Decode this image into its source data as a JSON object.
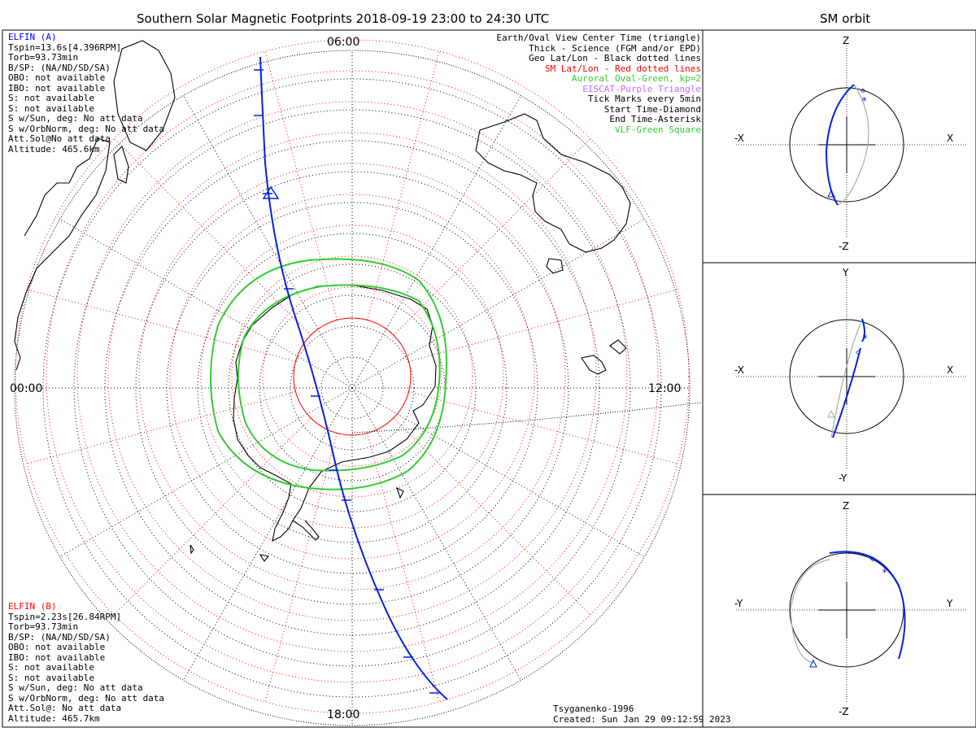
{
  "main_title": "Southern Solar Magnetic Footprints 2018-09-19 23:00 to 24:30 UTC",
  "orbit_title": "SM orbit",
  "mlt_labels": {
    "top": "06:00",
    "left": "00:00",
    "right": "12:00",
    "bottom": "18:00"
  },
  "elfin_a": {
    "name": "ELFIN (A)",
    "color": "#0000ff",
    "lines": [
      "Tspin=13.6s[4.396RPM]",
      "Torb=93.73min",
      "B/SP: (NA/ND/SD/SA)",
      "OBO: not available",
      "IBO: not available",
      "S: not available",
      "S: not available",
      "S w/Sun, deg: No att data",
      "S w/OrbNorm, deg: No att data",
      "Att.Sol@No att data",
      "Altitude: 465.6km"
    ]
  },
  "elfin_b": {
    "name": "ELFIN (B)",
    "color": "#ff0000",
    "lines": [
      "Tspin=2.23s[26.84RPM]",
      "Torb=93.73min",
      "B/SP: (NA/ND/SD/SA)",
      "OBO: not available",
      "IBO: not available",
      "S: not available",
      "S: not available",
      "S w/Sun, deg: No att data",
      "S w/OrbNorm, deg: No att data",
      "Att.Sol@: No att data",
      "Altitude: 465.7km"
    ]
  },
  "legend": [
    {
      "text": "Earth/Oval View Center Time (triangle)",
      "color": "#000000"
    },
    {
      "text": "Thick - Science (FGM and/or EPD)",
      "color": "#000000"
    },
    {
      "text": "Geo Lat/Lon - Black dotted lines",
      "color": "#000000"
    },
    {
      "text": "SM Lat/Lon - Red dotted lines",
      "color": "#ff0000"
    },
    {
      "text": "Auroral Oval-Green, kp=2",
      "color": "#33cc33"
    },
    {
      "text": "EISCAT-Purple Triangle",
      "color": "#cc66ff"
    },
    {
      "text": "Tick Marks every 5min",
      "color": "#000000"
    },
    {
      "text": "Start Time-Diamond",
      "color": "#000000"
    },
    {
      "text": "End Time-Asterisk",
      "color": "#000000"
    },
    {
      "text": "VLF-Green Square",
      "color": "#33cc33"
    }
  ],
  "credits": {
    "model": "Tsyganenko-1996",
    "created": "Created: Sun Jan 29 09:12:59 2023"
  },
  "orbit_panels": [
    {
      "top": "Z",
      "bottom": "-Z",
      "left": "-X",
      "right": "X"
    },
    {
      "top": "Y",
      "bottom": "-Y",
      "left": "-X",
      "right": "X"
    },
    {
      "top": "Z",
      "bottom": "-Z",
      "left": "-Y",
      "right": "Y"
    }
  ],
  "colors": {
    "footprint": "#0022dd",
    "oval": "#33cc33",
    "sm_grid": "#ff0000",
    "geo_grid": "#000000",
    "orbit_shadow": "#aaaaaa"
  },
  "chart_data": {
    "type": "polar-map",
    "tick_interval_min": 5,
    "kp": 2
  }
}
